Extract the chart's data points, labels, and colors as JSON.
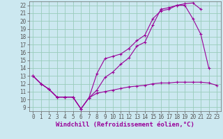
{
  "background_color": "#cce8f0",
  "line_color": "#990099",
  "grid_color": "#99ccbb",
  "xlabel": "Windchill (Refroidissement éolien,°C)",
  "xlabel_fontsize": 6.5,
  "tick_fontsize": 5.5,
  "xlim": [
    -0.5,
    23.5
  ],
  "ylim": [
    8.5,
    22.5
  ],
  "yticks": [
    9,
    10,
    11,
    12,
    13,
    14,
    15,
    16,
    17,
    18,
    19,
    20,
    21,
    22
  ],
  "xticks": [
    0,
    1,
    2,
    3,
    4,
    5,
    6,
    7,
    8,
    9,
    10,
    11,
    12,
    13,
    14,
    15,
    16,
    17,
    18,
    19,
    20,
    21,
    22,
    23
  ],
  "line1_x": [
    0,
    1,
    2,
    3,
    4,
    5,
    6,
    7,
    8,
    9,
    10,
    11,
    12,
    13,
    14,
    15,
    16,
    17,
    18,
    19,
    20,
    21,
    22,
    23
  ],
  "line1_y": [
    13,
    12,
    11.3,
    10.3,
    10.3,
    10.3,
    8.8,
    10.2,
    10.8,
    11.0,
    11.2,
    11.4,
    11.6,
    11.7,
    11.8,
    12.0,
    12.1,
    12.1,
    12.2,
    12.2,
    12.2,
    12.2,
    12.1,
    11.8
  ],
  "line2_x": [
    0,
    1,
    2,
    3,
    4,
    5,
    6,
    7,
    8,
    9,
    10,
    11,
    12,
    13,
    14,
    15,
    16,
    17,
    18,
    19,
    20,
    21,
    22
  ],
  "line2_y": [
    13,
    12,
    11.3,
    10.3,
    10.3,
    10.3,
    8.8,
    10.2,
    13.3,
    15.2,
    15.5,
    15.8,
    16.5,
    17.5,
    18.2,
    20.3,
    21.3,
    21.5,
    22.0,
    22.0,
    20.3,
    18.3,
    14.0
  ],
  "line3_x": [
    0,
    1,
    2,
    3,
    4,
    5,
    6,
    7,
    8,
    9,
    10,
    11,
    12,
    13,
    14,
    15,
    16,
    17,
    18,
    19,
    20,
    21
  ],
  "line3_y": [
    13,
    12,
    11.3,
    10.3,
    10.3,
    10.3,
    8.8,
    10.2,
    11.2,
    12.8,
    13.5,
    14.5,
    15.3,
    16.8,
    17.3,
    19.5,
    21.5,
    21.7,
    22.0,
    22.2,
    22.3,
    21.5
  ]
}
